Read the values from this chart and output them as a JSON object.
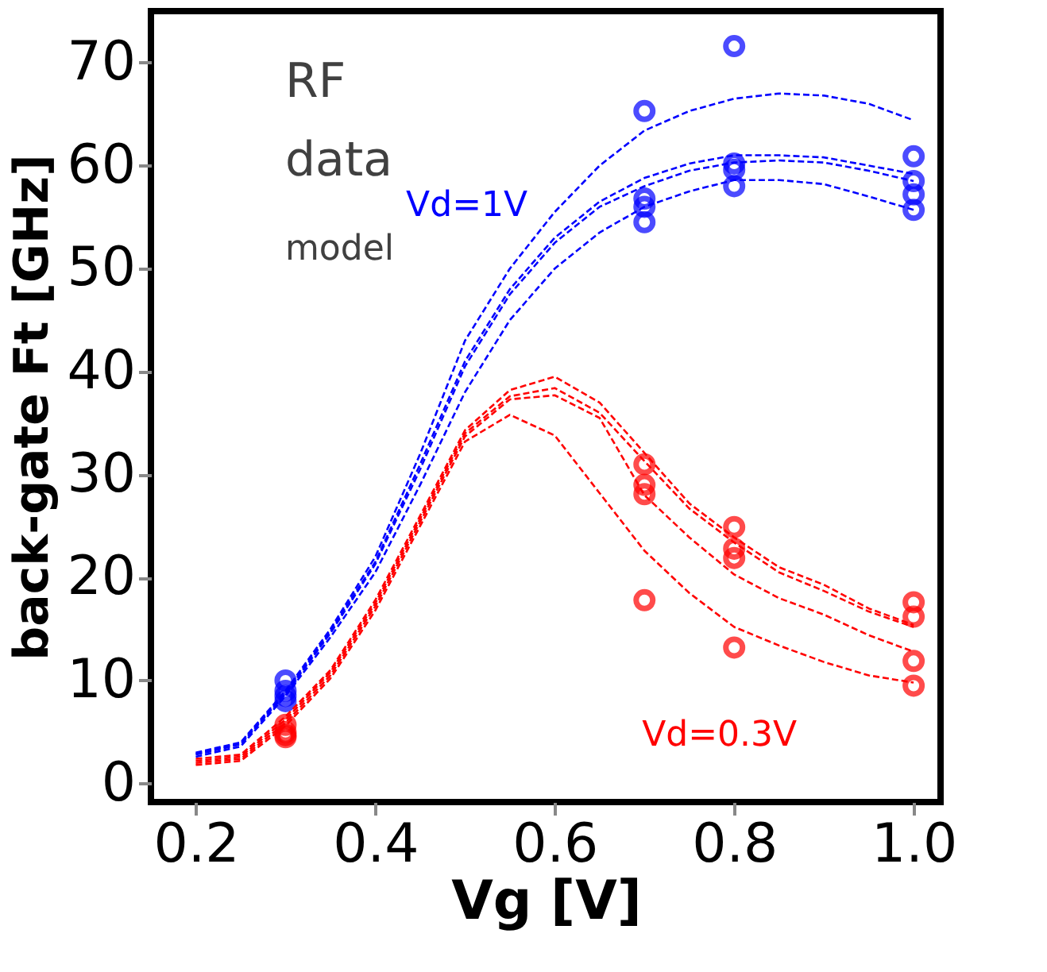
{
  "chart_data": {
    "type": "scatter",
    "xlabel": "Vg [V]",
    "ylabel": "back-gate   Ft [GHz]",
    "xlim": [
      0.15,
      1.03
    ],
    "ylim": [
      -1.8,
      75
    ],
    "xticks": [
      {
        "value": 0.2,
        "label": "0.2"
      },
      {
        "value": 0.4,
        "label": "0.4"
      },
      {
        "value": 0.6,
        "label": "0.6"
      },
      {
        "value": 0.8,
        "label": "0.8"
      },
      {
        "value": 1.0,
        "label": "1.0"
      }
    ],
    "yticks": [
      0,
      10,
      20,
      30,
      40,
      50,
      60,
      70
    ],
    "grid": false,
    "annotations": [
      "RF",
      "data",
      "model",
      "Vd=1V",
      "Vd=0.3V"
    ],
    "series": [
      {
        "type": "scatter",
        "marker": "circle",
        "color": "#0000ff",
        "x": [
          0.3,
          0.3,
          0.3,
          0.3,
          0.7,
          0.7,
          0.7,
          0.7,
          0.8,
          0.8,
          0.8,
          0.8,
          1.0,
          1.0,
          1.0,
          1.0
        ],
        "values": [
          10,
          9,
          8.5,
          8,
          65.3,
          56.8,
          56,
          54.5,
          71.6,
          60.2,
          59.6,
          58,
          60.9,
          58.5,
          57.2,
          55.7
        ]
      },
      {
        "type": "scatter",
        "marker": "circle",
        "color": "#ff0000",
        "x": [
          0.3,
          0.3,
          0.3,
          0.3,
          0.7,
          0.7,
          0.7,
          0.7,
          0.8,
          0.8,
          0.8,
          0.8,
          1.0,
          1.0,
          1.0,
          1.0
        ],
        "values": [
          5.7,
          5,
          4.7,
          4.5,
          31,
          29,
          28.1,
          17.8,
          24.9,
          22.8,
          21.9,
          13.2,
          17.6,
          16.2,
          11.9,
          9.5
        ]
      },
      {
        "type": "line",
        "line_style": "dashed",
        "marker": "none",
        "color": "#0000ff",
        "values": [
          3.0,
          4.0,
          9.0,
          15,
          22,
          32,
          43,
          50,
          55.5,
          60,
          63.4,
          65.3,
          66.5,
          67,
          66.8,
          66,
          64.4
        ]
      },
      {
        "type": "line",
        "line_style": "dashed",
        "marker": "none",
        "color": "#0000ff",
        "values": [
          2.9,
          3.9,
          8.8,
          14.8,
          21.5,
          31,
          41,
          48,
          53,
          56.5,
          58.8,
          60.2,
          61,
          61,
          60.8,
          60,
          59.2
        ]
      },
      {
        "type": "line",
        "line_style": "dashed",
        "marker": "none",
        "color": "#0000ff",
        "values": [
          2.8,
          3.8,
          8.7,
          14.6,
          21.3,
          30.5,
          40.5,
          47.5,
          52.5,
          56,
          58,
          59.5,
          60.3,
          60.5,
          60.3,
          59.5,
          58.5
        ]
      },
      {
        "type": "line",
        "line_style": "dashed",
        "marker": "none",
        "color": "#0000ff",
        "values": [
          2.6,
          3.6,
          8.5,
          14.2,
          20.5,
          29,
          38,
          45,
          50,
          53.5,
          56,
          57.5,
          58.6,
          58.6,
          58.2,
          57,
          55.7
        ]
      },
      {
        "type": "line",
        "line_style": "dashed",
        "marker": "none",
        "color": "#ff0000",
        "values": [
          2.4,
          2.8,
          6.5,
          11,
          17.8,
          26,
          34.3,
          38.2,
          39.5,
          37,
          32.1,
          27.2,
          23.9,
          21,
          19.3,
          17,
          15.4
        ]
      },
      {
        "type": "line",
        "line_style": "dashed",
        "marker": "none",
        "color": "#ff0000",
        "values": [
          2.2,
          2.6,
          6.2,
          10.8,
          17.5,
          25.7,
          34,
          37.6,
          38.4,
          36,
          31.3,
          26.7,
          23.4,
          20.5,
          18.7,
          16.7,
          15.2
        ]
      },
      {
        "type": "line",
        "line_style": "dashed",
        "marker": "none",
        "color": "#ff0000",
        "values": [
          2.0,
          2.4,
          5.9,
          10.5,
          17.2,
          25.4,
          33.7,
          37.3,
          37.7,
          35.5,
          28,
          23.9,
          20.3,
          18,
          16.4,
          14.4,
          12.8
        ]
      },
      {
        "type": "line",
        "line_style": "dashed",
        "marker": "none",
        "color": "#ff0000",
        "values": [
          1.8,
          2.2,
          5.6,
          10.2,
          16.8,
          25,
          33.2,
          35.8,
          33.8,
          28.2,
          22.6,
          18.5,
          15.2,
          13.4,
          11.8,
          10.5,
          9.8
        ]
      }
    ],
    "x": [
      0.2,
      0.25,
      0.3,
      0.35,
      0.4,
      0.45,
      0.5,
      0.55,
      0.6,
      0.65,
      0.7,
      0.75,
      0.8,
      0.85,
      0.9,
      0.95,
      1.0
    ]
  }
}
